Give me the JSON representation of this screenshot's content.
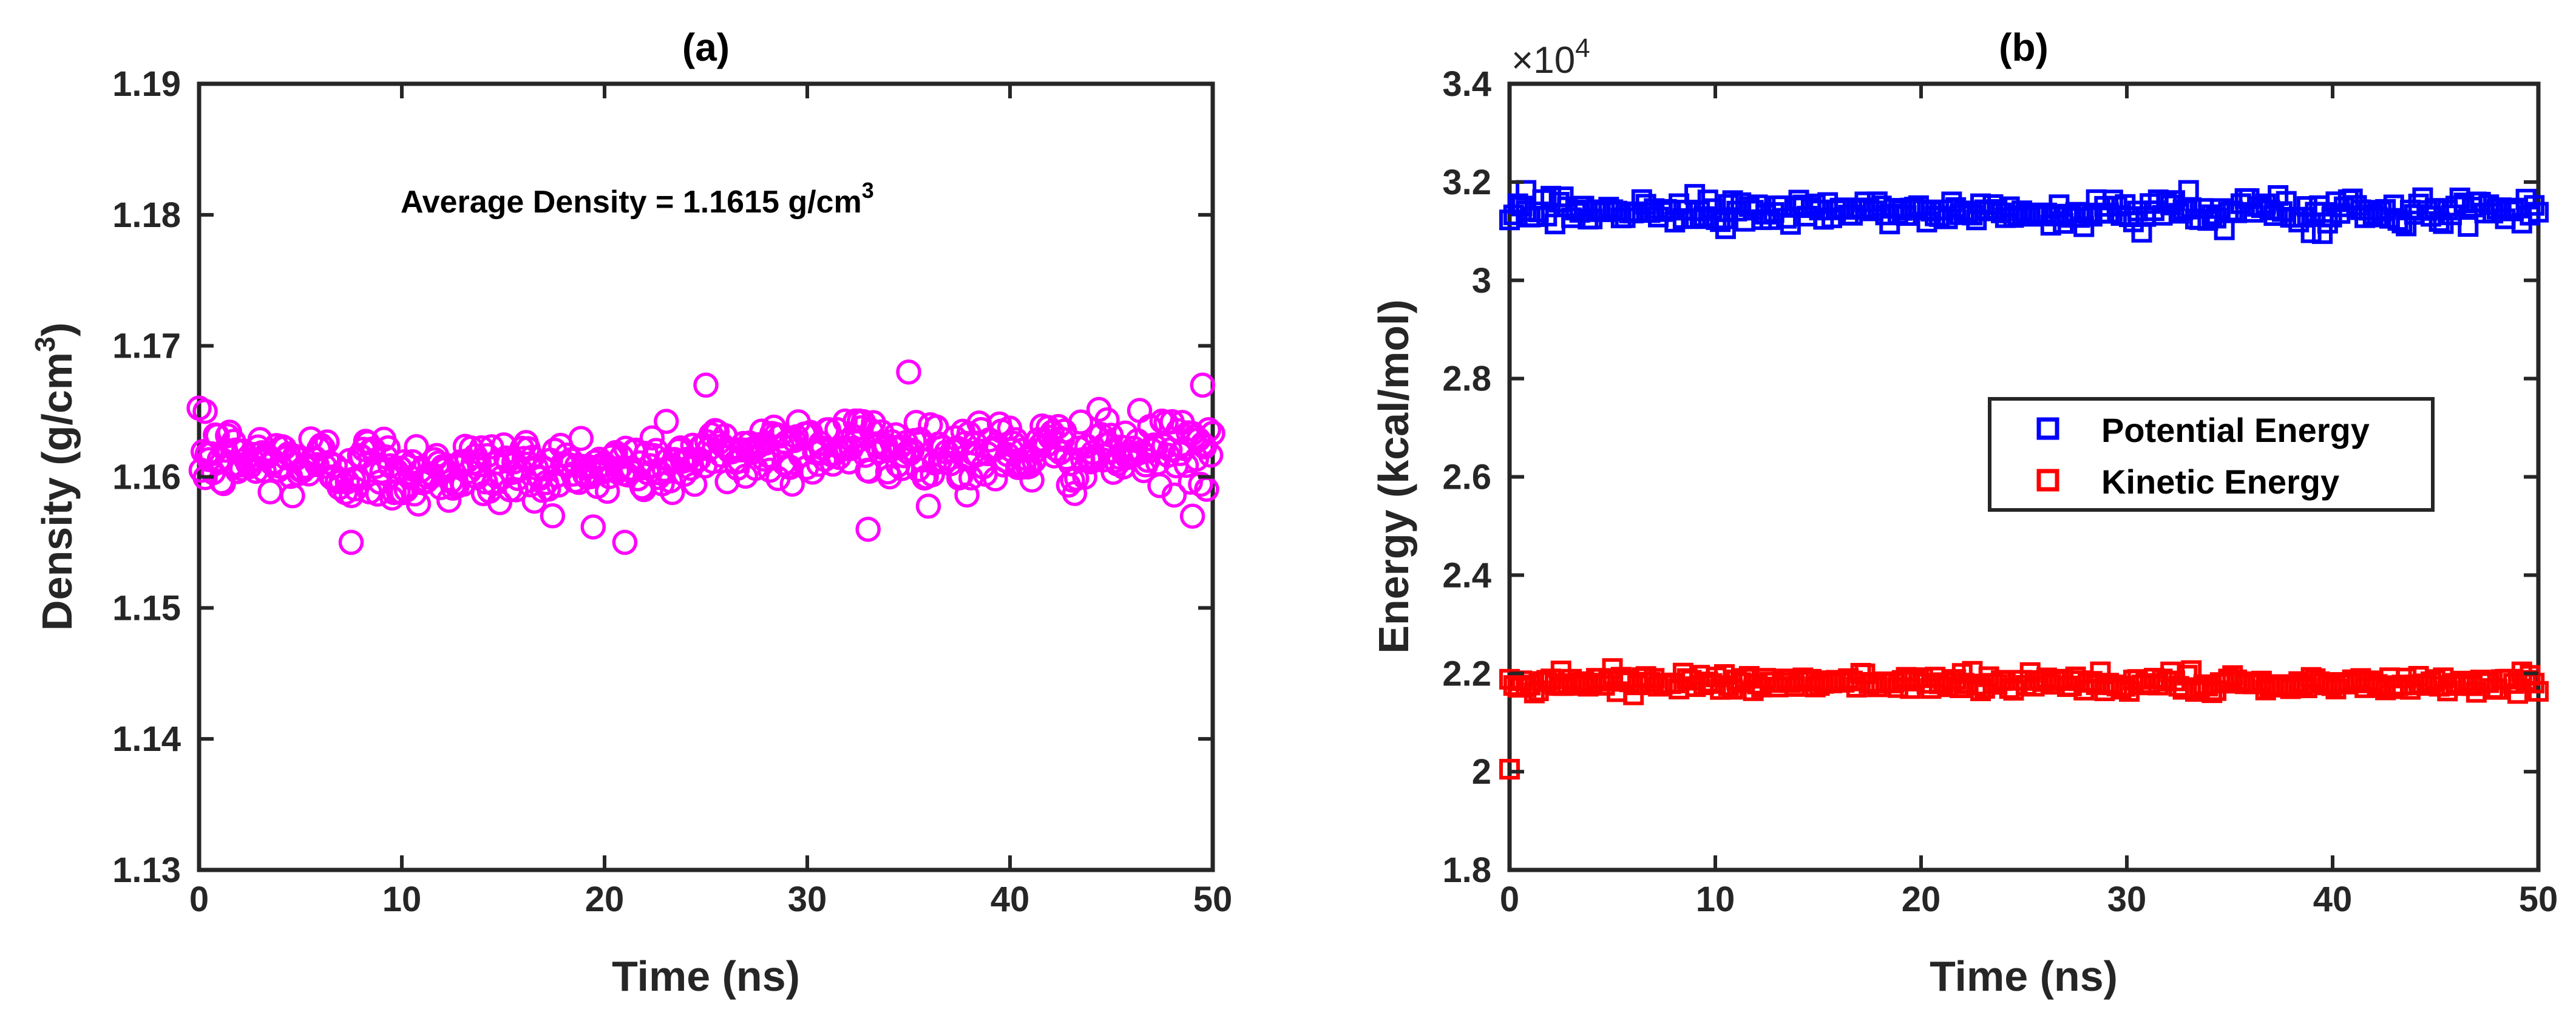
{
  "chart_data": [
    {
      "id": "a",
      "type": "scatter",
      "title": "(a)",
      "xlabel": "Time (ns)",
      "ylabel_main": "Density (g/cm",
      "ylabel_sup": "3",
      "ylabel_tail": ")",
      "xlim": [
        0,
        50
      ],
      "ylim": [
        1.13,
        1.19
      ],
      "xticks": [
        0,
        10,
        20,
        30,
        40,
        50
      ],
      "xtick_labels": [
        "0",
        "10",
        "20",
        "30",
        "40",
        "50"
      ],
      "yticks": [
        1.13,
        1.14,
        1.15,
        1.16,
        1.17,
        1.18,
        1.19
      ],
      "ytick_labels": [
        "1.13",
        "1.14",
        "1.15",
        "1.16",
        "1.17",
        "1.18",
        "1.19"
      ],
      "grid": false,
      "annotation_main": "Average Density = 1.1615 g/cm",
      "annotation_sup": "3",
      "series": [
        {
          "name": "Density",
          "color": "#ff00ff",
          "marker": "circle",
          "mean": 1.1615,
          "trend": [
            [
              0,
              1.1615
            ],
            [
              10,
              1.1605
            ],
            [
              20,
              1.1605
            ],
            [
              30,
              1.1625
            ],
            [
              40,
              1.1618
            ],
            [
              50,
              1.162
            ]
          ],
          "noise": 0.0018,
          "n_points": 500,
          "extremes": [
            [
              7.5,
              1.155
            ],
            [
              35,
              1.168
            ],
            [
              25,
              1.167
            ],
            [
              33,
              1.156
            ],
            [
              0.3,
              1.165
            ],
            [
              49.5,
              1.167
            ],
            [
              21,
              1.155
            ],
            [
              49,
              1.157
            ]
          ]
        }
      ]
    },
    {
      "id": "b",
      "type": "scatter",
      "title": "(b)",
      "xlabel": "Time (ns)",
      "ylabel": "Energy (kcal/mol)",
      "scale_prefix": "×10",
      "scale_exp": "4",
      "xlim": [
        0,
        50
      ],
      "ylim": [
        1.8,
        3.4
      ],
      "xticks": [
        0,
        10,
        20,
        30,
        40,
        50
      ],
      "xtick_labels": [
        "0",
        "10",
        "20",
        "30",
        "40",
        "50"
      ],
      "yticks": [
        1.8,
        2.0,
        2.2,
        2.4,
        2.6,
        2.8,
        3.0,
        3.2,
        3.4
      ],
      "ytick_labels": [
        "1.8",
        "2",
        "2.2",
        "2.4",
        "2.6",
        "2.8",
        "3",
        "3.2",
        "3.4"
      ],
      "grid": false,
      "legend_position": "center-right",
      "series": [
        {
          "name": "Potential Energy",
          "color": "#0000ff",
          "marker": "square",
          "mean": 3.14,
          "noise": 0.018,
          "n_points": 250,
          "extremes": [
            [
              0.8,
              3.183
            ],
            [
              33,
              3.183
            ],
            [
              39.5,
              3.095
            ],
            [
              9,
              3.175
            ],
            [
              10.5,
              3.105
            ]
          ]
        },
        {
          "name": "Kinetic Energy",
          "color": "#ff0000",
          "marker": "square",
          "mean": 2.18,
          "noise": 0.012,
          "n_points": 250,
          "extremes": [
            [
              0,
              2.005
            ],
            [
              5,
              2.21
            ],
            [
              2.5,
              2.205
            ],
            [
              22,
              2.2
            ]
          ]
        }
      ]
    }
  ]
}
